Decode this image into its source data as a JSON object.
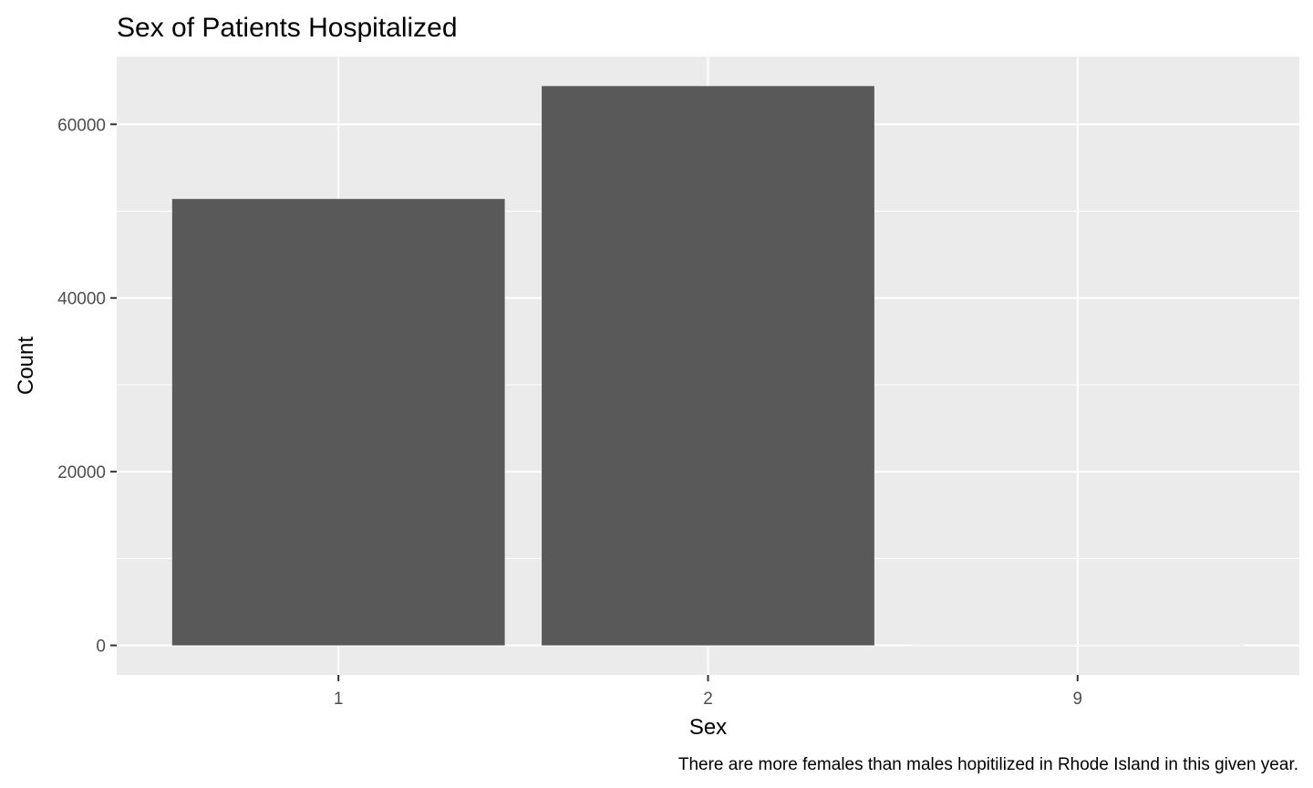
{
  "chart_data": {
    "type": "bar",
    "title": "Sex of Patients Hospitalized",
    "xlabel": "Sex",
    "ylabel": "Count",
    "caption": "There are more females than males hopitilized in Rhode Island in this given year.",
    "categories": [
      "1",
      "2",
      "9"
    ],
    "values": [
      51400,
      64400,
      10
    ],
    "ylim": [
      -3400,
      67800
    ],
    "yticks": [
      0,
      20000,
      40000,
      60000
    ],
    "ytick_labels": [
      "0",
      "20000",
      "40000",
      "60000"
    ],
    "grid": true,
    "colors": {
      "panel": "#EBEBEB",
      "grid_major": "#FFFFFF",
      "bar": "#595959",
      "tick": "#333333"
    }
  }
}
